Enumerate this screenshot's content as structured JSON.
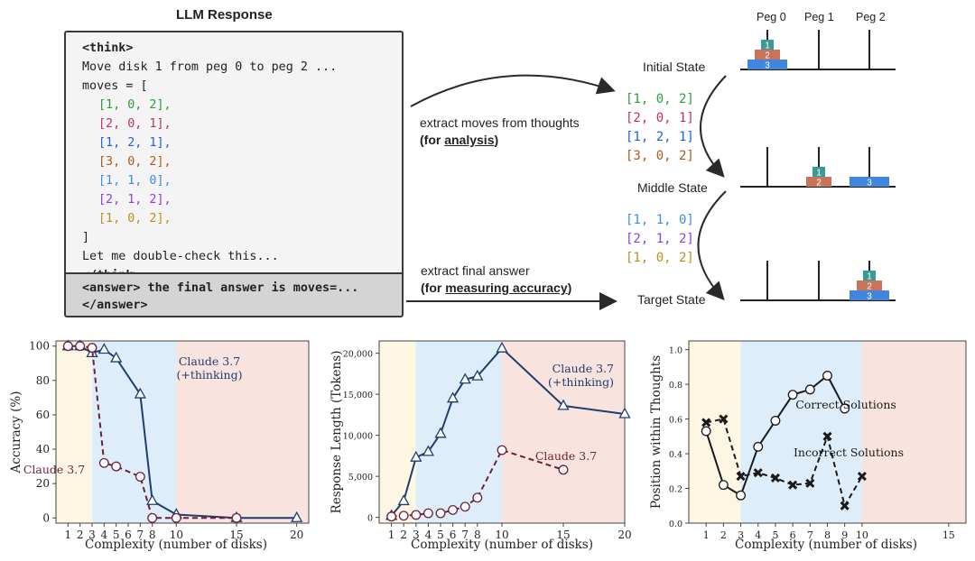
{
  "top_panel": {
    "title": "LLM Response",
    "think_open": "<think>",
    "think_text": "Move disk 1 from peg 0 to peg 2 ...",
    "moves_open": "moves = [",
    "moves_close": "]",
    "double_check": "Let me double-check this...",
    "think_close": "</think>",
    "answer_line1": "<answer> the final answer is moves=...",
    "answer_line2": "</answer>",
    "moves": [
      {
        "text": "[1, 0, 2],",
        "color": "#2f9a3a"
      },
      {
        "text": "[2, 0, 1],",
        "color": "#c2306a"
      },
      {
        "text": "[1, 2, 1],",
        "color": "#2460d8"
      },
      {
        "text": "[3, 0, 2],",
        "color": "#b4561c"
      },
      {
        "text": "[1, 1, 0],",
        "color": "#3b8ee6"
      },
      {
        "text": "[2, 1, 2],",
        "color": "#8a3fe0"
      },
      {
        "text": "[1, 0, 2],",
        "color": "#b9901e"
      }
    ],
    "extract_moves_text": "extract moves  from thoughts",
    "extract_moves_note_pre": "(for ",
    "extract_moves_note_u": "analysis",
    "extract_moves_note_post": ")",
    "extract_answer_text": "extract final answer",
    "extract_answer_note_pre": "(for ",
    "extract_answer_note_u": "measuring accuracy",
    "extract_answer_note_post": ")",
    "extracted_top": [
      {
        "text": "[1, 0, 2]",
        "color": "#2f9a3a"
      },
      {
        "text": "[2, 0, 1]",
        "color": "#c2306a"
      },
      {
        "text": "[1, 2, 1]",
        "color": "#2460d8"
      },
      {
        "text": "[3, 0, 2]",
        "color": "#b4561c"
      }
    ],
    "extracted_bottom": [
      {
        "text": "[1, 1, 0]",
        "color": "#3b8ee6"
      },
      {
        "text": "[2, 1, 2]",
        "color": "#8a3fe0"
      },
      {
        "text": "[1, 0, 2]",
        "color": "#b9901e"
      }
    ],
    "states": [
      "Initial State",
      "Middle State",
      "Target State"
    ],
    "pegs": [
      "Peg 0",
      "Peg 1",
      "Peg 2"
    ],
    "disk_labels": [
      "1",
      "2",
      "3"
    ],
    "disk_colors": {
      "1": "#3a9a96",
      "2": "#c9735a",
      "3": "#3f86dc"
    }
  },
  "chart_data": [
    {
      "type": "line",
      "xlabel": "Complexity (number of disks)",
      "ylabel": "Accuracy (%)",
      "xlim": [
        0,
        21
      ],
      "ylim": [
        -3,
        103
      ],
      "xticks": [
        1,
        2,
        3,
        4,
        5,
        6,
        7,
        8,
        10,
        15,
        20
      ],
      "yticks": [
        0,
        20,
        40,
        60,
        80,
        100
      ],
      "regions": [
        {
          "from": 0,
          "to": 3,
          "color": "#fdf6e3"
        },
        {
          "from": 3,
          "to": 10,
          "color": "#ddeefa"
        },
        {
          "from": 10,
          "to": 21,
          "color": "#f8e3df"
        }
      ],
      "series": [
        {
          "name": "Claude 3.7 (+thinking)",
          "label_lines": [
            "Claude 3.7",
            "(+thinking)"
          ],
          "color": "#1f3d6e",
          "dash": false,
          "marker": "triangle",
          "x": [
            1,
            2,
            3,
            4,
            5,
            7,
            8,
            10,
            15,
            20
          ],
          "y": [
            100,
            100,
            96,
            98,
            93,
            72,
            10,
            2,
            0,
            0
          ]
        },
        {
          "name": "Claude 3.7",
          "label_lines": [
            "Claude 3.7"
          ],
          "color": "#6e1f3e",
          "dash": true,
          "marker": "circle",
          "x": [
            1,
            2,
            3,
            4,
            5,
            7,
            8,
            10,
            15
          ],
          "y": [
            100,
            100,
            99,
            32,
            30,
            24,
            0,
            0,
            0
          ]
        }
      ]
    },
    {
      "type": "line",
      "xlabel": "Complexity (number of disks)",
      "ylabel": "Response Length (Tokens)",
      "xlim": [
        0,
        20
      ],
      "ylim": [
        -700,
        21500
      ],
      "xticks": [
        1,
        2,
        3,
        4,
        5,
        6,
        7,
        8,
        10,
        15,
        20
      ],
      "yticks": [
        0,
        5000,
        10000,
        15000,
        20000
      ],
      "ytick_labels": [
        "0",
        "5,000",
        "10,000",
        "15,000",
        "20,000"
      ],
      "regions": [
        {
          "from": 0,
          "to": 3,
          "color": "#fdf6e3"
        },
        {
          "from": 3,
          "to": 10,
          "color": "#ddeefa"
        },
        {
          "from": 10,
          "to": 20,
          "color": "#f8e3df"
        }
      ],
      "series": [
        {
          "name": "Claude 3.7 (+thinking)",
          "label_lines": [
            "Claude 3.7",
            "(+thinking)"
          ],
          "color": "#1f3d6e",
          "dash": false,
          "marker": "triangle",
          "x": [
            1,
            2,
            3,
            4,
            5,
            6,
            7,
            8,
            10,
            15,
            20
          ],
          "y": [
            200,
            2000,
            7300,
            8000,
            10200,
            14500,
            16800,
            17200,
            20600,
            13600,
            12600
          ]
        },
        {
          "name": "Claude 3.7",
          "label_lines": [
            "Claude 3.7"
          ],
          "color": "#6e1f3e",
          "dash": true,
          "marker": "circle",
          "x": [
            1,
            2,
            3,
            4,
            5,
            6,
            7,
            8,
            10,
            15
          ],
          "y": [
            100,
            200,
            300,
            500,
            500,
            900,
            1300,
            2400,
            8200,
            5800
          ]
        }
      ]
    },
    {
      "type": "line",
      "xlabel": "Complexity (number of disks)",
      "ylabel": "Position within Thoughts",
      "xlim": [
        0,
        16
      ],
      "ylim": [
        0,
        1.05
      ],
      "xticks": [
        1,
        2,
        3,
        4,
        5,
        6,
        7,
        8,
        9,
        10,
        15
      ],
      "yticks": [
        0.0,
        0.2,
        0.4,
        0.6,
        0.8,
        1.0
      ],
      "ytick_labels": [
        "0.0",
        "0.2",
        "0.4",
        "0.6",
        "0.8",
        "1.0"
      ],
      "regions": [
        {
          "from": 0,
          "to": 3,
          "color": "#fdf6e3"
        },
        {
          "from": 3,
          "to": 10,
          "color": "#ddeefa"
        },
        {
          "from": 10,
          "to": 16,
          "color": "#f8e3df"
        }
      ],
      "series": [
        {
          "name": "Correct Solutions",
          "label_lines": [
            "Correct Solutions"
          ],
          "color": "#1a1a1a",
          "dash": false,
          "marker": "circle",
          "x": [
            1,
            2,
            3,
            4,
            5,
            6,
            7,
            8,
            9
          ],
          "y": [
            0.53,
            0.22,
            0.16,
            0.44,
            0.59,
            0.74,
            0.77,
            0.85,
            0.66
          ]
        },
        {
          "name": "Incorrect Solutions",
          "label_lines": [
            "Incorrect Solutions"
          ],
          "color": "#1a1a1a",
          "dash": true,
          "marker": "cross",
          "x": [
            1,
            2,
            3,
            4,
            5,
            6,
            7,
            8,
            9,
            10
          ],
          "y": [
            0.58,
            0.6,
            0.27,
            0.29,
            0.26,
            0.22,
            0.23,
            0.5,
            0.1,
            0.27
          ]
        }
      ]
    }
  ]
}
